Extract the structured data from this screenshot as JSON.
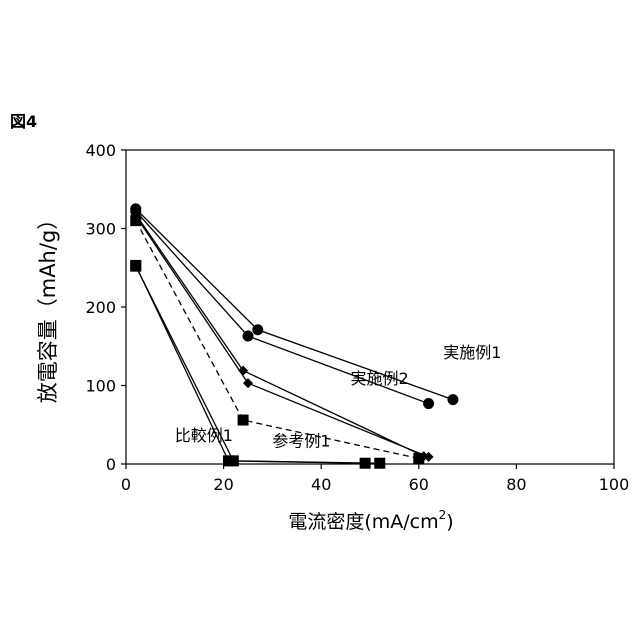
{
  "figure_label": "図4",
  "chart_data": {
    "type": "line",
    "title": "",
    "xlabel": "電流密度(mA/cm",
    "xlabel_sup": "2",
    "xlabel_close": ")",
    "ylabel": "放電容量（mAh/g）",
    "xlim": [
      0,
      100
    ],
    "ylim": [
      0,
      400
    ],
    "xticks": [
      0,
      20,
      40,
      60,
      80,
      100
    ],
    "yticks": [
      0,
      100,
      200,
      300,
      400
    ],
    "grid": false,
    "series": [
      {
        "name": "実施例1",
        "marker": "circle",
        "dash": "solid",
        "points": [
          [
            2,
            325
          ],
          [
            27,
            171
          ],
          [
            67,
            82
          ]
        ]
      },
      {
        "name": "実施例1",
        "marker": "circle",
        "dash": "solid",
        "points": [
          [
            2,
            322
          ],
          [
            25,
            163
          ],
          [
            62,
            77
          ]
        ]
      },
      {
        "name": "実施例2",
        "marker": "diamond",
        "dash": "solid",
        "points": [
          [
            2,
            318
          ],
          [
            24,
            119
          ],
          [
            61,
            10
          ]
        ]
      },
      {
        "name": "実施例2",
        "marker": "diamond",
        "dash": "solid",
        "points": [
          [
            2,
            316
          ],
          [
            25,
            103
          ],
          [
            62,
            9
          ]
        ]
      },
      {
        "name": "参考例1",
        "marker": "square",
        "dash": "dashed",
        "points": [
          [
            2,
            310
          ],
          [
            24,
            56
          ],
          [
            60,
            7
          ]
        ]
      },
      {
        "name": "比較例1",
        "marker": "square",
        "dash": "solid",
        "points": [
          [
            2,
            253
          ],
          [
            21,
            4
          ],
          [
            49,
            1
          ]
        ]
      },
      {
        "name": "比較例1",
        "marker": "square",
        "dash": "solid",
        "points": [
          [
            2,
            252
          ],
          [
            22,
            4
          ],
          [
            52,
            1
          ]
        ]
      }
    ],
    "annotations": [
      {
        "text": "実施例1",
        "x": 65,
        "y": 135
      },
      {
        "text": "実施例2",
        "x": 46,
        "y": 102
      },
      {
        "text": "参考例1",
        "x": 30,
        "y": 22
      },
      {
        "text": "比較例1",
        "x": 10,
        "y": 29
      }
    ]
  }
}
